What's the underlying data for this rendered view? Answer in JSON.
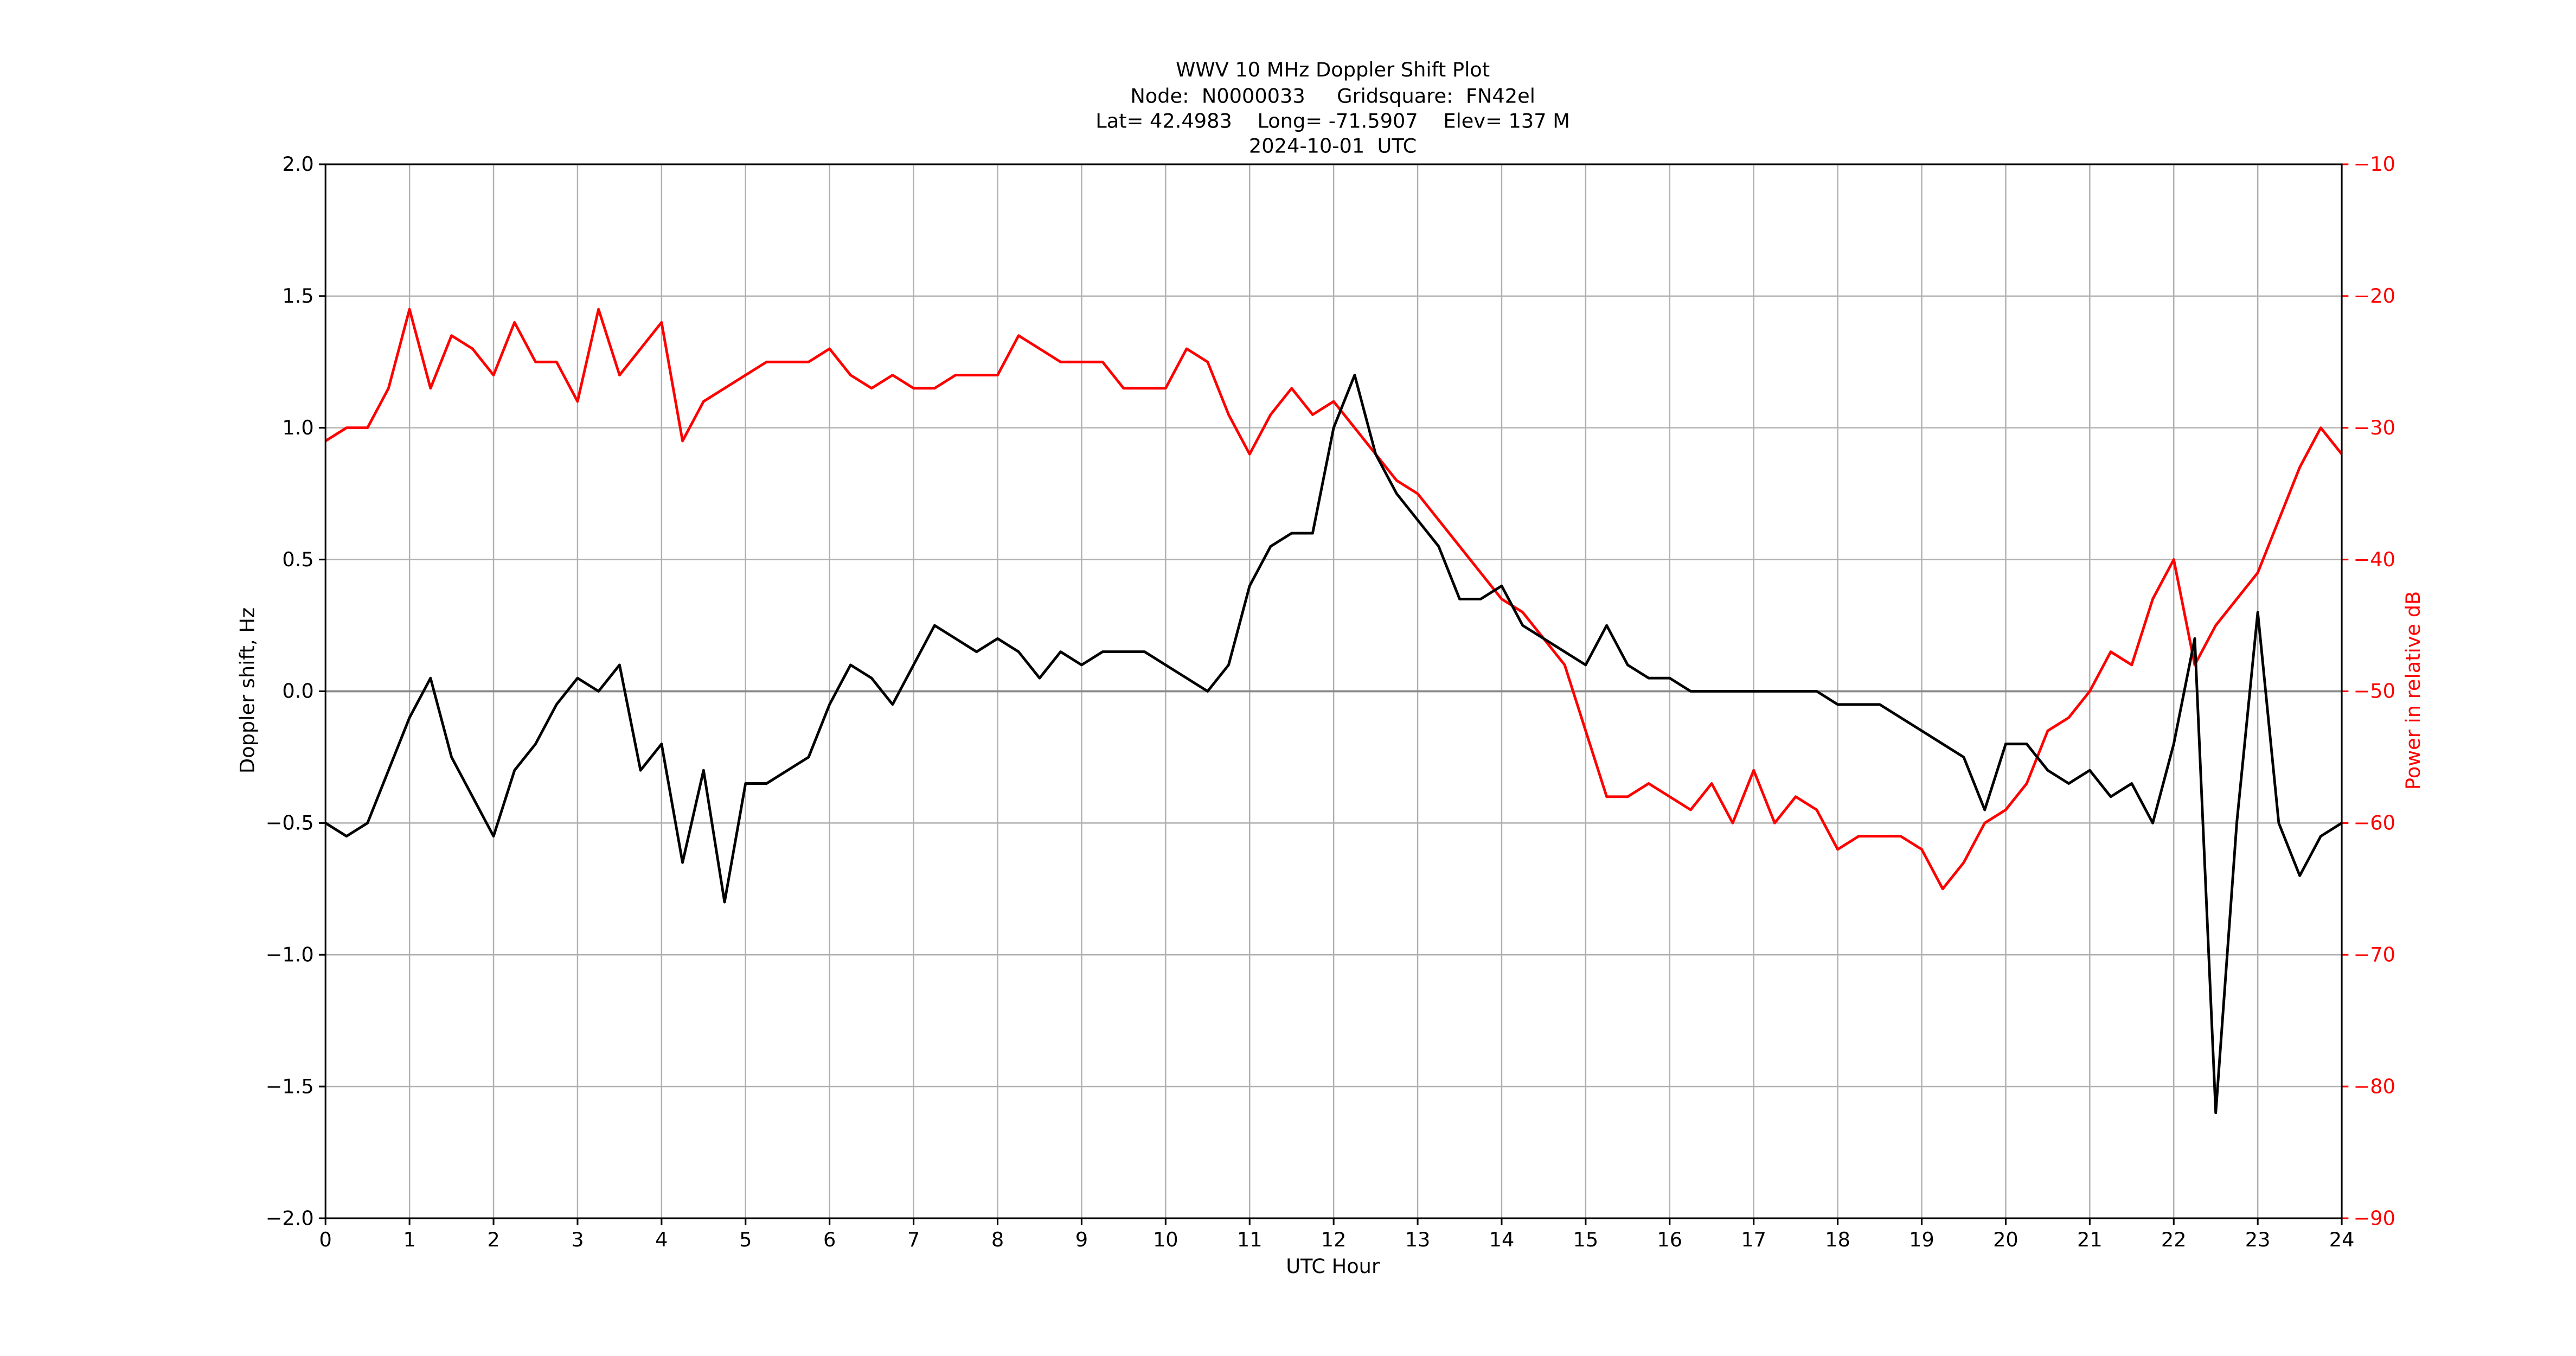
{
  "chart_data": {
    "type": "line",
    "title": [
      "WWV 10 MHz Doppler Shift Plot",
      "Node:  N0000033     Gridsquare:  FN42el",
      "Lat= 42.4983    Long= -71.5907    Elev= 137 M",
      "2024-10-01  UTC"
    ],
    "x_label": "UTC Hour",
    "y_label": "Doppler shift, Hz",
    "y2_label": "Power in relative dB",
    "grid": true,
    "x": [
      0,
      0.25,
      0.5,
      0.75,
      1,
      1.25,
      1.5,
      1.75,
      2,
      2.25,
      2.5,
      2.75,
      3,
      3.25,
      3.5,
      3.75,
      4,
      4.25,
      4.5,
      4.75,
      5,
      5.25,
      5.5,
      5.75,
      6,
      6.25,
      6.5,
      6.75,
      7,
      7.25,
      7.5,
      7.75,
      8,
      8.25,
      8.5,
      8.75,
      9,
      9.25,
      9.5,
      9.75,
      10,
      10.25,
      10.5,
      10.75,
      11,
      11.25,
      11.5,
      11.75,
      12,
      12.25,
      12.5,
      12.75,
      13,
      13.25,
      13.5,
      13.75,
      14,
      14.25,
      14.5,
      14.75,
      15,
      15.25,
      15.5,
      15.75,
      16,
      16.25,
      16.5,
      16.75,
      17,
      17.25,
      17.5,
      17.75,
      18,
      18.25,
      18.5,
      18.75,
      19,
      19.25,
      19.5,
      19.75,
      20,
      20.25,
      20.5,
      20.75,
      21,
      21.25,
      21.5,
      21.75,
      22,
      22.25,
      22.5,
      22.75,
      23,
      23.25,
      23.5,
      23.75,
      24
    ],
    "series": [
      {
        "color": "#000000",
        "axis": "y",
        "values": [
          -0.5,
          -0.55,
          -0.5,
          -0.3,
          -0.1,
          0.05,
          -0.25,
          -0.4,
          -0.55,
          -0.3,
          -0.2,
          -0.05,
          0.05,
          0,
          0.1,
          -0.3,
          -0.2,
          -0.65,
          -0.3,
          -0.8,
          -0.35,
          -0.35,
          -0.3,
          -0.25,
          -0.05,
          0.1,
          0.05,
          -0.05,
          0.1,
          0.25,
          0.2,
          0.15,
          0.2,
          0.15,
          0.05,
          0.15,
          0.1,
          0.15,
          0.15,
          0.15,
          0.1,
          0.05,
          0,
          0.1,
          0.4,
          0.55,
          0.6,
          0.6,
          1.0,
          1.2,
          0.9,
          0.75,
          0.65,
          0.55,
          0.35,
          0.35,
          0.4,
          0.25,
          0.2,
          0.15,
          0.1,
          0.25,
          0.1,
          0.05,
          0.05,
          0,
          0,
          0,
          0,
          0,
          0,
          0,
          -0.05,
          -0.05,
          -0.05,
          -0.1,
          -0.15,
          -0.2,
          -0.25,
          -0.45,
          -0.2,
          -0.2,
          -0.3,
          -0.35,
          -0.3,
          -0.4,
          -0.35,
          -0.5,
          -0.2,
          0.2,
          -1.6,
          -0.5,
          0.3,
          -0.5,
          -0.7,
          -0.55,
          -0.5
        ]
      },
      {
        "color": "#ff0000",
        "axis": "y2",
        "values": [
          -31,
          -30,
          -30,
          -27,
          -21,
          -27,
          -23,
          -24,
          -26,
          -22,
          -25,
          -25,
          -28,
          -21,
          -26,
          -24,
          -22,
          -31,
          -28,
          -27,
          -26,
          -25,
          -25,
          -25,
          -24,
          -26,
          -27,
          -26,
          -27,
          -27,
          -26,
          -26,
          -26,
          -23,
          -24,
          -25,
          -25,
          -25,
          -27,
          -27,
          -27,
          -24,
          -25,
          -29,
          -32,
          -29,
          -27,
          -29,
          -28,
          -30,
          -32,
          -34,
          -35,
          -37,
          -39,
          -41,
          -43,
          -44,
          -46,
          -48,
          -53,
          -58,
          -58,
          -57,
          -58,
          -59,
          -57,
          -60,
          -56,
          -60,
          -58,
          -59,
          -62,
          -61,
          -61,
          -61,
          -62,
          -65,
          -63,
          -60,
          -59,
          -57,
          -53,
          -52,
          -50,
          -47,
          -48,
          -43,
          -40,
          -48,
          -45,
          -43,
          -41,
          -37,
          -33,
          -30,
          -32
        ]
      }
    ],
    "xlim": [
      0,
      24
    ],
    "xticks": [
      0,
      1,
      2,
      3,
      4,
      5,
      6,
      7,
      8,
      9,
      10,
      11,
      12,
      13,
      14,
      15,
      16,
      17,
      18,
      19,
      20,
      21,
      22,
      23,
      24
    ],
    "ylim": [
      -2,
      2
    ],
    "yticks": [
      {
        "value": -2,
        "label": "−2.0"
      },
      {
        "value": -1.5,
        "label": "−1.5"
      },
      {
        "value": -1,
        "label": "−1.0"
      },
      {
        "value": -0.5,
        "label": "−0.5"
      },
      {
        "value": 0,
        "label": "0.0"
      },
      {
        "value": 0.5,
        "label": "0.5"
      },
      {
        "value": 1,
        "label": "1.0"
      },
      {
        "value": 1.5,
        "label": "1.5"
      },
      {
        "value": 2,
        "label": "2.0"
      }
    ],
    "y2lim": [
      -90,
      -10
    ],
    "y2ticks": [
      {
        "value": -90,
        "label": "−90"
      },
      {
        "value": -80,
        "label": "−80"
      },
      {
        "value": -70,
        "label": "−70"
      },
      {
        "value": -60,
        "label": "−60"
      },
      {
        "value": -50,
        "label": "−50"
      },
      {
        "value": -40,
        "label": "−40"
      },
      {
        "value": -30,
        "label": "−30"
      },
      {
        "value": -20,
        "label": "−20"
      },
      {
        "value": -10,
        "label": "−10"
      }
    ]
  }
}
